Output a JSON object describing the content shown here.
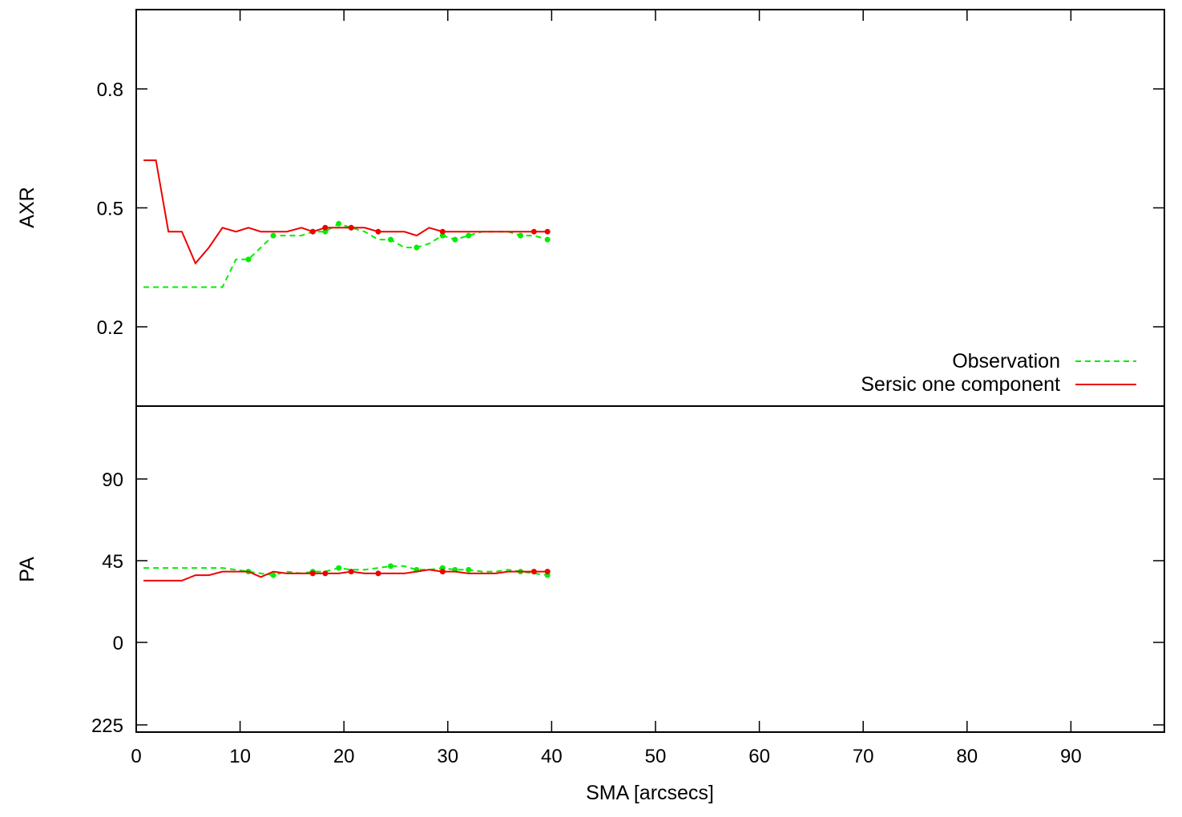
{
  "chart_data": [
    {
      "type": "line",
      "panel": "top",
      "ylabel": "AXR",
      "xlabel": "",
      "xlim": [
        0,
        99
      ],
      "ylim": [
        0.0,
        1.0
      ],
      "ytick_values": [
        0.2,
        0.5,
        0.8
      ],
      "ytick_labels": [
        "0.2",
        "0.5",
        "0.8"
      ],
      "legend_position": "bottom-right",
      "series": [
        {
          "name": "Observation",
          "style": "dashed",
          "color": "#00ee00",
          "x": [
            0.7,
            1.9,
            3.1,
            4.4,
            5.7,
            7.0,
            8.3,
            9.6,
            10.8,
            12.0,
            13.2,
            14.5,
            15.9,
            17.0,
            18.2,
            19.5,
            20.7,
            22.0,
            23.3,
            24.5,
            25.8,
            27.0,
            28.2,
            29.5,
            30.7,
            32.0,
            33.3,
            34.6,
            35.8,
            37.0,
            38.3,
            39.6
          ],
          "y": [
            0.3,
            0.3,
            0.3,
            0.3,
            0.3,
            0.3,
            0.3,
            0.37,
            0.37,
            0.4,
            0.43,
            0.43,
            0.43,
            0.44,
            0.44,
            0.46,
            0.45,
            0.44,
            0.42,
            0.42,
            0.4,
            0.4,
            0.41,
            0.43,
            0.42,
            0.43,
            0.44,
            0.44,
            0.44,
            0.43,
            0.43,
            0.42
          ],
          "marker_x": [
            10.8,
            13.2,
            17.0,
            18.2,
            19.5,
            20.7,
            24.5,
            27.0,
            29.5,
            30.7,
            32.0,
            37.0,
            39.6
          ],
          "marker_y": [
            0.37,
            0.43,
            0.44,
            0.44,
            0.46,
            0.45,
            0.42,
            0.4,
            0.43,
            0.42,
            0.43,
            0.43,
            0.42
          ]
        },
        {
          "name": "Sersic one component",
          "style": "solid",
          "color": "#ee0000",
          "x": [
            0.7,
            1.9,
            3.1,
            4.4,
            5.7,
            7.0,
            8.3,
            9.6,
            10.8,
            12.0,
            13.2,
            14.5,
            15.9,
            17.0,
            18.2,
            19.5,
            20.7,
            22.0,
            23.3,
            24.5,
            25.8,
            27.0,
            28.2,
            29.5,
            30.7,
            32.0,
            33.3,
            34.6,
            35.8,
            37.0,
            38.3,
            39.6
          ],
          "y": [
            0.62,
            0.62,
            0.44,
            0.44,
            0.36,
            0.4,
            0.45,
            0.44,
            0.45,
            0.44,
            0.44,
            0.44,
            0.45,
            0.44,
            0.45,
            0.45,
            0.45,
            0.45,
            0.44,
            0.44,
            0.44,
            0.43,
            0.45,
            0.44,
            0.44,
            0.44,
            0.44,
            0.44,
            0.44,
            0.44,
            0.44,
            0.44
          ],
          "marker_x": [
            17.0,
            18.2,
            20.7,
            23.3,
            29.5,
            38.3,
            39.6
          ],
          "marker_y": [
            0.44,
            0.45,
            0.45,
            0.44,
            0.44,
            0.44,
            0.44
          ]
        }
      ]
    },
    {
      "type": "line",
      "panel": "bottom",
      "ylabel": "PA",
      "xlabel": "SMA [arcsecs]",
      "xlim": [
        0,
        99
      ],
      "xtick_values": [
        0,
        10,
        20,
        30,
        40,
        50,
        60,
        70,
        80,
        90
      ],
      "xtick_labels": [
        "0",
        "10",
        "20",
        "30",
        "40",
        "50",
        "60",
        "70",
        "80",
        "90"
      ],
      "ytick_labels": [
        "225",
        "0",
        "45",
        "90"
      ],
      "series": [
        {
          "name": "Observation",
          "style": "dashed",
          "color": "#00ee00",
          "x": [
            0.7,
            1.9,
            3.1,
            4.4,
            5.7,
            7.0,
            8.3,
            9.6,
            10.8,
            12.0,
            13.2,
            14.5,
            15.9,
            17.0,
            18.2,
            19.5,
            20.7,
            22.0,
            23.3,
            24.5,
            25.8,
            27.0,
            28.2,
            29.5,
            30.7,
            32.0,
            33.3,
            34.6,
            35.8,
            37.0,
            38.3,
            39.6
          ],
          "y": [
            41,
            41,
            41,
            41,
            41,
            41,
            41,
            40,
            39,
            38,
            37,
            39,
            38,
            39,
            39,
            41,
            40,
            40,
            41,
            42,
            42,
            40,
            40,
            41,
            40,
            40,
            39,
            39,
            40,
            39,
            38,
            37
          ],
          "marker_x": [
            10.8,
            13.2,
            17.0,
            19.5,
            24.5,
            27.0,
            29.5,
            30.7,
            32.0,
            37.0,
            39.6
          ],
          "marker_y": [
            39,
            37,
            39,
            41,
            42,
            40,
            41,
            40,
            40,
            39,
            37
          ]
        },
        {
          "name": "Sersic one component",
          "style": "solid",
          "color": "#ee0000",
          "x": [
            0.7,
            1.9,
            3.1,
            4.4,
            5.7,
            7.0,
            8.3,
            9.6,
            10.8,
            12.0,
            13.2,
            14.5,
            15.9,
            17.0,
            18.2,
            19.5,
            20.7,
            22.0,
            23.3,
            24.5,
            25.8,
            27.0,
            28.2,
            29.5,
            30.7,
            32.0,
            33.3,
            34.6,
            35.8,
            37.0,
            38.3,
            39.6
          ],
          "y": [
            34,
            34,
            34,
            34,
            37,
            37,
            39,
            39,
            39,
            36,
            39,
            38,
            38,
            38,
            38,
            38,
            39,
            38,
            38,
            38,
            38,
            39,
            40,
            39,
            39,
            38,
            38,
            38,
            39,
            39,
            39,
            39
          ],
          "marker_x": [
            17.0,
            18.2,
            20.7,
            23.3,
            29.5,
            38.3,
            39.6
          ],
          "marker_y": [
            38,
            38,
            39,
            38,
            39,
            39,
            39
          ]
        }
      ]
    }
  ]
}
